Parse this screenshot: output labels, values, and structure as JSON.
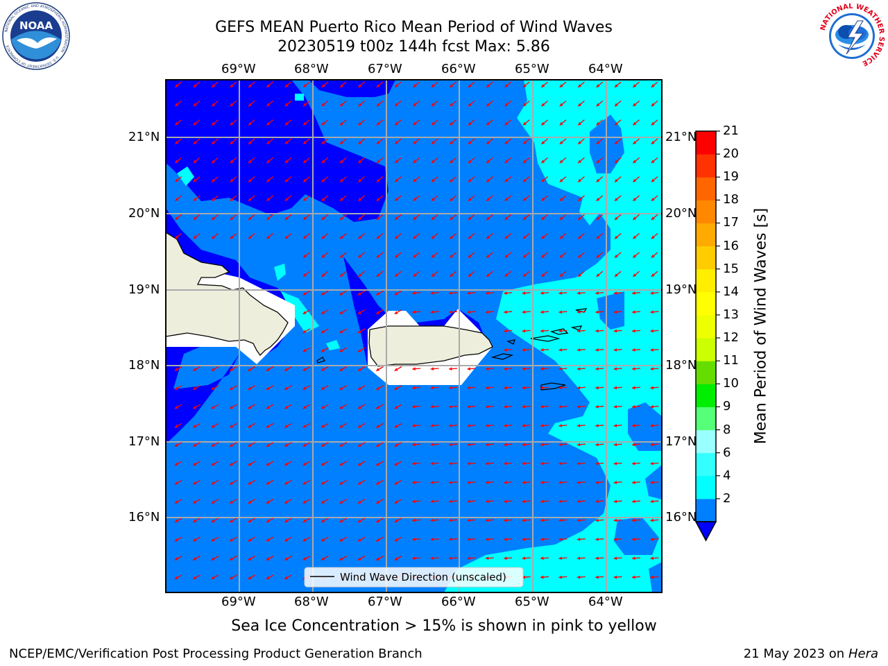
{
  "title": {
    "line1": "GEFS MEAN Puerto Rico Mean Period of Wind Waves",
    "line2": "20230519 t00z 144h fcst   Max: 5.86"
  },
  "map": {
    "lon_labels": [
      "69°W",
      "68°W",
      "67°W",
      "66°W",
      "65°W",
      "64°W"
    ],
    "lat_labels": [
      "21°N",
      "20°N",
      "19°N",
      "18°N",
      "17°N",
      "16°N"
    ],
    "legend_label": "Wind Wave Direction (unscaled)",
    "colors": {
      "level_below_2": "#0000ff",
      "level_2_4": "#0080ff",
      "level_4_6": "#00ffff",
      "land": "#eeeedd",
      "arrows": "#ff0000",
      "grid": "#aaaaaa"
    }
  },
  "colorbar": {
    "label": "Mean Period of Wind Waves [s]",
    "ticks": [
      "21",
      "20",
      "19",
      "18",
      "17",
      "16",
      "15",
      "14",
      "13",
      "12",
      "11",
      "10",
      "9",
      "8",
      "6",
      "4",
      "2"
    ],
    "colors": [
      "#0080ff",
      "#00ffff",
      "#33ffff",
      "#99ffff",
      "#55ff77",
      "#00ee00",
      "#66dd00",
      "#ccff00",
      "#eeff00",
      "#ffff00",
      "#ffee00",
      "#ffcc00",
      "#ffaa00",
      "#ff8800",
      "#ff6600",
      "#ff3300",
      "#ff0000"
    ],
    "extend_color": "#0000ff"
  },
  "footer": {
    "note": "Sea Ice Concentration > 15% is shown in pink to yellow",
    "left": "NCEP/EMC/Verification Post Processing Product Generation Branch",
    "right_date": "21 May 2023 on",
    "right_machine": "Hera"
  },
  "logos": {
    "noaa_text": "NOAA",
    "nws_text": "NATIONAL WEATHER SERVICE",
    "noaa_ring": "NATIONAL OCEANIC AND ATMOSPHERIC ADMINISTRATION",
    "noaa_ring2": "U.S. DEPARTMENT OF COMMERCE"
  }
}
